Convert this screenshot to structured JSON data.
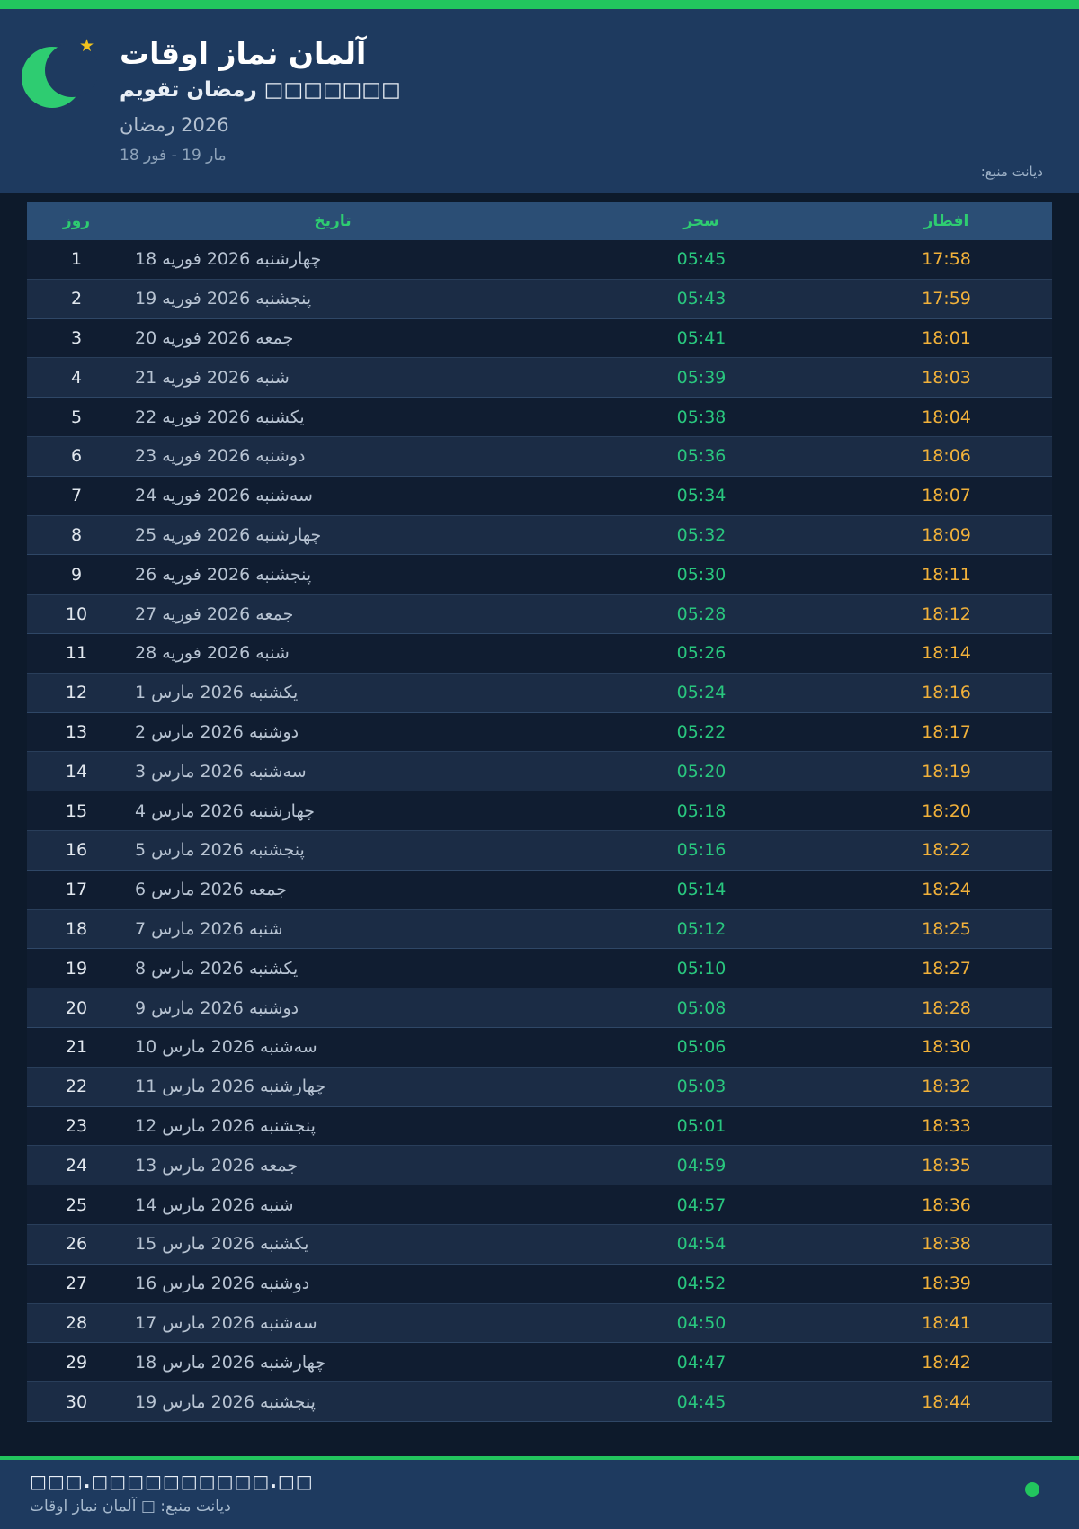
{
  "colors": {
    "accent_green": "#22c55e",
    "table_header_green": "#2ecc71",
    "sahar_green": "#29c77e",
    "iftar_amber": "#f1b13a",
    "header_bg": "#1e3a5f",
    "page_bg": "#0d1a2b"
  },
  "header": {
    "title": "اوقات نماز آلمان",
    "subtitle": "تقویم رمضان □□□□□□□",
    "season": "رمضان 2026",
    "date_range": "18 فور - 19 مار",
    "source": "منبع: دیانت",
    "moon_icon": "crescent-moon-icon",
    "star_icon": "star-icon"
  },
  "table": {
    "columns": {
      "day": "روز",
      "date": "تاریخ",
      "sahar": "سحر",
      "iftar": "افطار"
    },
    "rows": [
      {
        "day": "1",
        "date": "18 فوریه 2026 چهارشنبه",
        "sahar": "05:45",
        "iftar": "17:58"
      },
      {
        "day": "2",
        "date": "19 فوریه 2026 پنجشنبه",
        "sahar": "05:43",
        "iftar": "17:59"
      },
      {
        "day": "3",
        "date": "20 فوریه 2026 جمعه",
        "sahar": "05:41",
        "iftar": "18:01"
      },
      {
        "day": "4",
        "date": "21 فوریه 2026 شنبه",
        "sahar": "05:39",
        "iftar": "18:03"
      },
      {
        "day": "5",
        "date": "22 فوریه 2026 یکشنبه",
        "sahar": "05:38",
        "iftar": "18:04"
      },
      {
        "day": "6",
        "date": "23 فوریه 2026 دوشنبه",
        "sahar": "05:36",
        "iftar": "18:06"
      },
      {
        "day": "7",
        "date": "24 فوریه 2026 سه‌شنبه",
        "sahar": "05:34",
        "iftar": "18:07"
      },
      {
        "day": "8",
        "date": "25 فوریه 2026 چهارشنبه",
        "sahar": "05:32",
        "iftar": "18:09"
      },
      {
        "day": "9",
        "date": "26 فوریه 2026 پنجشنبه",
        "sahar": "05:30",
        "iftar": "18:11"
      },
      {
        "day": "10",
        "date": "27 فوریه 2026 جمعه",
        "sahar": "05:28",
        "iftar": "18:12"
      },
      {
        "day": "11",
        "date": "28 فوریه 2026 شنبه",
        "sahar": "05:26",
        "iftar": "18:14"
      },
      {
        "day": "12",
        "date": "1 مارس 2026 یکشنبه",
        "sahar": "05:24",
        "iftar": "18:16"
      },
      {
        "day": "13",
        "date": "2 مارس 2026 دوشنبه",
        "sahar": "05:22",
        "iftar": "18:17"
      },
      {
        "day": "14",
        "date": "3 مارس 2026 سه‌شنبه",
        "sahar": "05:20",
        "iftar": "18:19"
      },
      {
        "day": "15",
        "date": "4 مارس 2026 چهارشنبه",
        "sahar": "05:18",
        "iftar": "18:20"
      },
      {
        "day": "16",
        "date": "5 مارس 2026 پنجشنبه",
        "sahar": "05:16",
        "iftar": "18:22"
      },
      {
        "day": "17",
        "date": "6 مارس 2026 جمعه",
        "sahar": "05:14",
        "iftar": "18:24"
      },
      {
        "day": "18",
        "date": "7 مارس 2026 شنبه",
        "sahar": "05:12",
        "iftar": "18:25"
      },
      {
        "day": "19",
        "date": "8 مارس 2026 یکشنبه",
        "sahar": "05:10",
        "iftar": "18:27"
      },
      {
        "day": "20",
        "date": "9 مارس 2026 دوشنبه",
        "sahar": "05:08",
        "iftar": "18:28"
      },
      {
        "day": "21",
        "date": "10 مارس 2026 سه‌شنبه",
        "sahar": "05:06",
        "iftar": "18:30"
      },
      {
        "day": "22",
        "date": "11 مارس 2026 چهارشنبه",
        "sahar": "05:03",
        "iftar": "18:32"
      },
      {
        "day": "23",
        "date": "12 مارس 2026 پنجشنبه",
        "sahar": "05:01",
        "iftar": "18:33"
      },
      {
        "day": "24",
        "date": "13 مارس 2026 جمعه",
        "sahar": "04:59",
        "iftar": "18:35"
      },
      {
        "day": "25",
        "date": "14 مارس 2026 شنبه",
        "sahar": "04:57",
        "iftar": "18:36"
      },
      {
        "day": "26",
        "date": "15 مارس 2026 یکشنبه",
        "sahar": "04:54",
        "iftar": "18:38"
      },
      {
        "day": "27",
        "date": "16 مارس 2026 دوشنبه",
        "sahar": "04:52",
        "iftar": "18:39"
      },
      {
        "day": "28",
        "date": "17 مارس 2026 سه‌شنبه",
        "sahar": "04:50",
        "iftar": "18:41"
      },
      {
        "day": "29",
        "date": "18 مارس 2026 چهارشنبه",
        "sahar": "04:47",
        "iftar": "18:42"
      },
      {
        "day": "30",
        "date": "19 مارس 2026 پنجشنبه",
        "sahar": "04:45",
        "iftar": "18:44"
      }
    ]
  },
  "footer": {
    "url_placeholder": "□□□.□□□□□□□□□□.□□",
    "caption": "اوقات نماز آلمان □ منبع: دیانت",
    "status_icon": "green-dot-icon"
  }
}
